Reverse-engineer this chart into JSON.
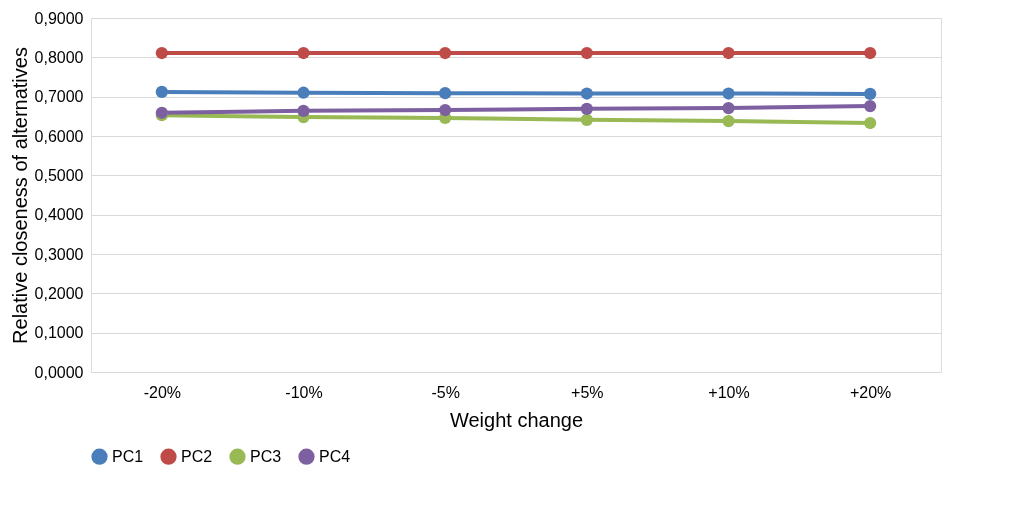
{
  "chart_data": {
    "type": "line",
    "xlabel": "Weight change",
    "ylabel": "Relative closeness of alternatives",
    "categories": [
      "-20%",
      "-10%",
      "-5%",
      "+5%",
      "+10%",
      "+20%"
    ],
    "series": [
      {
        "name": "PC1",
        "color": "#4a7ebb",
        "values": [
          0.712,
          0.71,
          0.709,
          0.708,
          0.708,
          0.707
        ]
      },
      {
        "name": "PC2",
        "color": "#be4b48",
        "values": [
          0.811,
          0.811,
          0.811,
          0.811,
          0.811,
          0.811
        ]
      },
      {
        "name": "PC3",
        "color": "#98b954",
        "values": [
          0.653,
          0.648,
          0.646,
          0.641,
          0.638,
          0.633
        ]
      },
      {
        "name": "PC4",
        "color": "#7d60a0",
        "values": [
          0.659,
          0.664,
          0.666,
          0.669,
          0.671,
          0.676
        ]
      }
    ],
    "ylim": [
      0,
      0.9
    ],
    "yticks": [
      {
        "value": 0,
        "label": "0,0000"
      },
      {
        "value": 0.1,
        "label": "0,1000"
      },
      {
        "value": 0.2,
        "label": "0,2000"
      },
      {
        "value": 0.3,
        "label": "0,3000"
      },
      {
        "value": 0.4,
        "label": "0,4000"
      },
      {
        "value": 0.5,
        "label": "0,5000"
      },
      {
        "value": 0.6,
        "label": "0,6000"
      },
      {
        "value": 0.7,
        "label": "0,7000"
      },
      {
        "value": 0.8,
        "label": "0,8000"
      },
      {
        "value": 0.9,
        "label": "0,9000"
      }
    ],
    "grid": "y",
    "legend": "bottom",
    "marker": "circle",
    "line_style": "solid"
  }
}
